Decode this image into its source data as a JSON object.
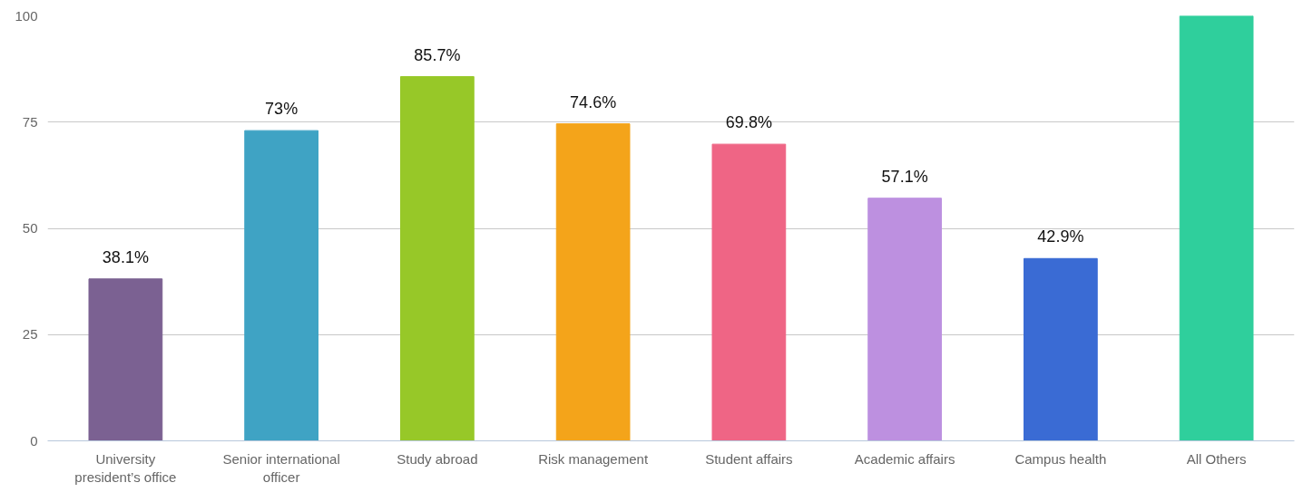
{
  "chart_data": {
    "type": "bar",
    "categories": [
      "University president’s office",
      "Senior international officer",
      "Study abroad",
      "Risk management",
      "Student affairs",
      "Academic affairs",
      "Campus health",
      "All Others"
    ],
    "values": [
      38.1,
      73,
      85.7,
      74.6,
      69.8,
      57.1,
      42.9,
      100
    ],
    "colors": [
      "#7b6192",
      "#3fa3c4",
      "#97c828",
      "#f4a41a",
      "#ef6585",
      "#bd90e0",
      "#3a6bd4",
      "#2fcf9c"
    ],
    "value_labels": [
      "38.1%",
      "73%",
      "85.7%",
      "74.6%",
      "69.8%",
      "57.1%",
      "42.9%",
      null
    ],
    "ylim": [
      0,
      100
    ],
    "yticks": [
      0,
      25,
      50,
      75,
      100
    ],
    "grid": "y"
  }
}
